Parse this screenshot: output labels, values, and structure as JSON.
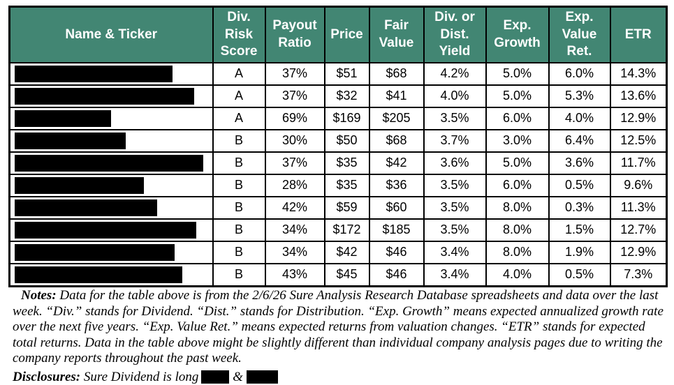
{
  "colors": {
    "header_background": "#428673",
    "header_text": "#FFFFFF",
    "table_border": "#000000",
    "redaction": "#000000"
  },
  "table": {
    "columns": [
      {
        "id": "name-ticker",
        "label": "Name & Ticker"
      },
      {
        "id": "div-risk-score",
        "label": "Div. Risk Score"
      },
      {
        "id": "payout-ratio",
        "label": "Payout Ratio"
      },
      {
        "id": "price",
        "label": "Price"
      },
      {
        "id": "fair-value",
        "label": "Fair Value"
      },
      {
        "id": "div-dist-yield",
        "label": "Div. or Dist. Yield"
      },
      {
        "id": "exp-growth",
        "label": "Exp. Growth"
      },
      {
        "id": "exp-value-ret",
        "label": "Exp. Value Ret."
      },
      {
        "id": "etr",
        "label": "ETR"
      }
    ],
    "rows": [
      {
        "name_redacted": true,
        "redaction_width": 226,
        "div_risk_score": "A",
        "payout_ratio": "37%",
        "price": "$51",
        "fair_value": "$68",
        "div_dist_yield": "4.2%",
        "exp_growth": "5.0%",
        "exp_value_ret": "6.0%",
        "etr": "14.3%"
      },
      {
        "name_redacted": true,
        "redaction_width": 257,
        "div_risk_score": "A",
        "payout_ratio": "37%",
        "price": "$32",
        "fair_value": "$41",
        "div_dist_yield": "4.0%",
        "exp_growth": "5.0%",
        "exp_value_ret": "5.3%",
        "etr": "13.6%"
      },
      {
        "name_redacted": true,
        "redaction_width": 138,
        "div_risk_score": "A",
        "payout_ratio": "69%",
        "price": "$169",
        "fair_value": "$205",
        "div_dist_yield": "3.5%",
        "exp_growth": "6.0%",
        "exp_value_ret": "4.0%",
        "etr": "12.9%"
      },
      {
        "name_redacted": true,
        "redaction_width": 159,
        "div_risk_score": "B",
        "payout_ratio": "30%",
        "price": "$50",
        "fair_value": "$68",
        "div_dist_yield": "3.7%",
        "exp_growth": "3.0%",
        "exp_value_ret": "6.4%",
        "etr": "12.5%"
      },
      {
        "name_redacted": true,
        "redaction_width": 270,
        "div_risk_score": "B",
        "payout_ratio": "37%",
        "price": "$35",
        "fair_value": "$42",
        "div_dist_yield": "3.6%",
        "exp_growth": "5.0%",
        "exp_value_ret": "3.6%",
        "etr": "11.7%"
      },
      {
        "name_redacted": true,
        "redaction_width": 185,
        "div_risk_score": "B",
        "payout_ratio": "28%",
        "price": "$35",
        "fair_value": "$36",
        "div_dist_yield": "3.5%",
        "exp_growth": "6.0%",
        "exp_value_ret": "0.5%",
        "etr": "9.6%"
      },
      {
        "name_redacted": true,
        "redaction_width": 204,
        "div_risk_score": "B",
        "payout_ratio": "42%",
        "price": "$59",
        "fair_value": "$60",
        "div_dist_yield": "3.5%",
        "exp_growth": "8.0%",
        "exp_value_ret": "0.3%",
        "etr": "11.3%"
      },
      {
        "name_redacted": true,
        "redaction_width": 260,
        "div_risk_score": "B",
        "payout_ratio": "34%",
        "price": "$172",
        "fair_value": "$185",
        "div_dist_yield": "3.5%",
        "exp_growth": "8.0%",
        "exp_value_ret": "1.5%",
        "etr": "12.7%"
      },
      {
        "name_redacted": true,
        "redaction_width": 229,
        "div_risk_score": "B",
        "payout_ratio": "34%",
        "price": "$42",
        "fair_value": "$46",
        "div_dist_yield": "3.4%",
        "exp_growth": "8.0%",
        "exp_value_ret": "1.9%",
        "etr": "12.9%"
      },
      {
        "name_redacted": true,
        "redaction_width": 240,
        "div_risk_score": "B",
        "payout_ratio": "43%",
        "price": "$45",
        "fair_value": "$46",
        "div_dist_yield": "3.4%",
        "exp_growth": "4.0%",
        "exp_value_ret": "0.5%",
        "etr": "7.3%"
      }
    ]
  },
  "notes": {
    "label": "Notes:",
    "text": "Data for the table above is from the 2/6/26 Sure Analysis Research Database spreadsheets and data over the last week. “Div.” stands for Dividend. “Dist.” stands for Distribution. “Exp. Growth” means expected annualized growth rate over the next five years. “Exp. Value Ret.” means expected returns from valuation changes. “ETR” stands for expected total returns. Data in the table above might be slightly different than individual company analysis pages due to writing the company reports throughout the past week."
  },
  "disclosures": {
    "label": "Disclosures:",
    "text": "Sure Dividend is long",
    "separator": "&"
  }
}
